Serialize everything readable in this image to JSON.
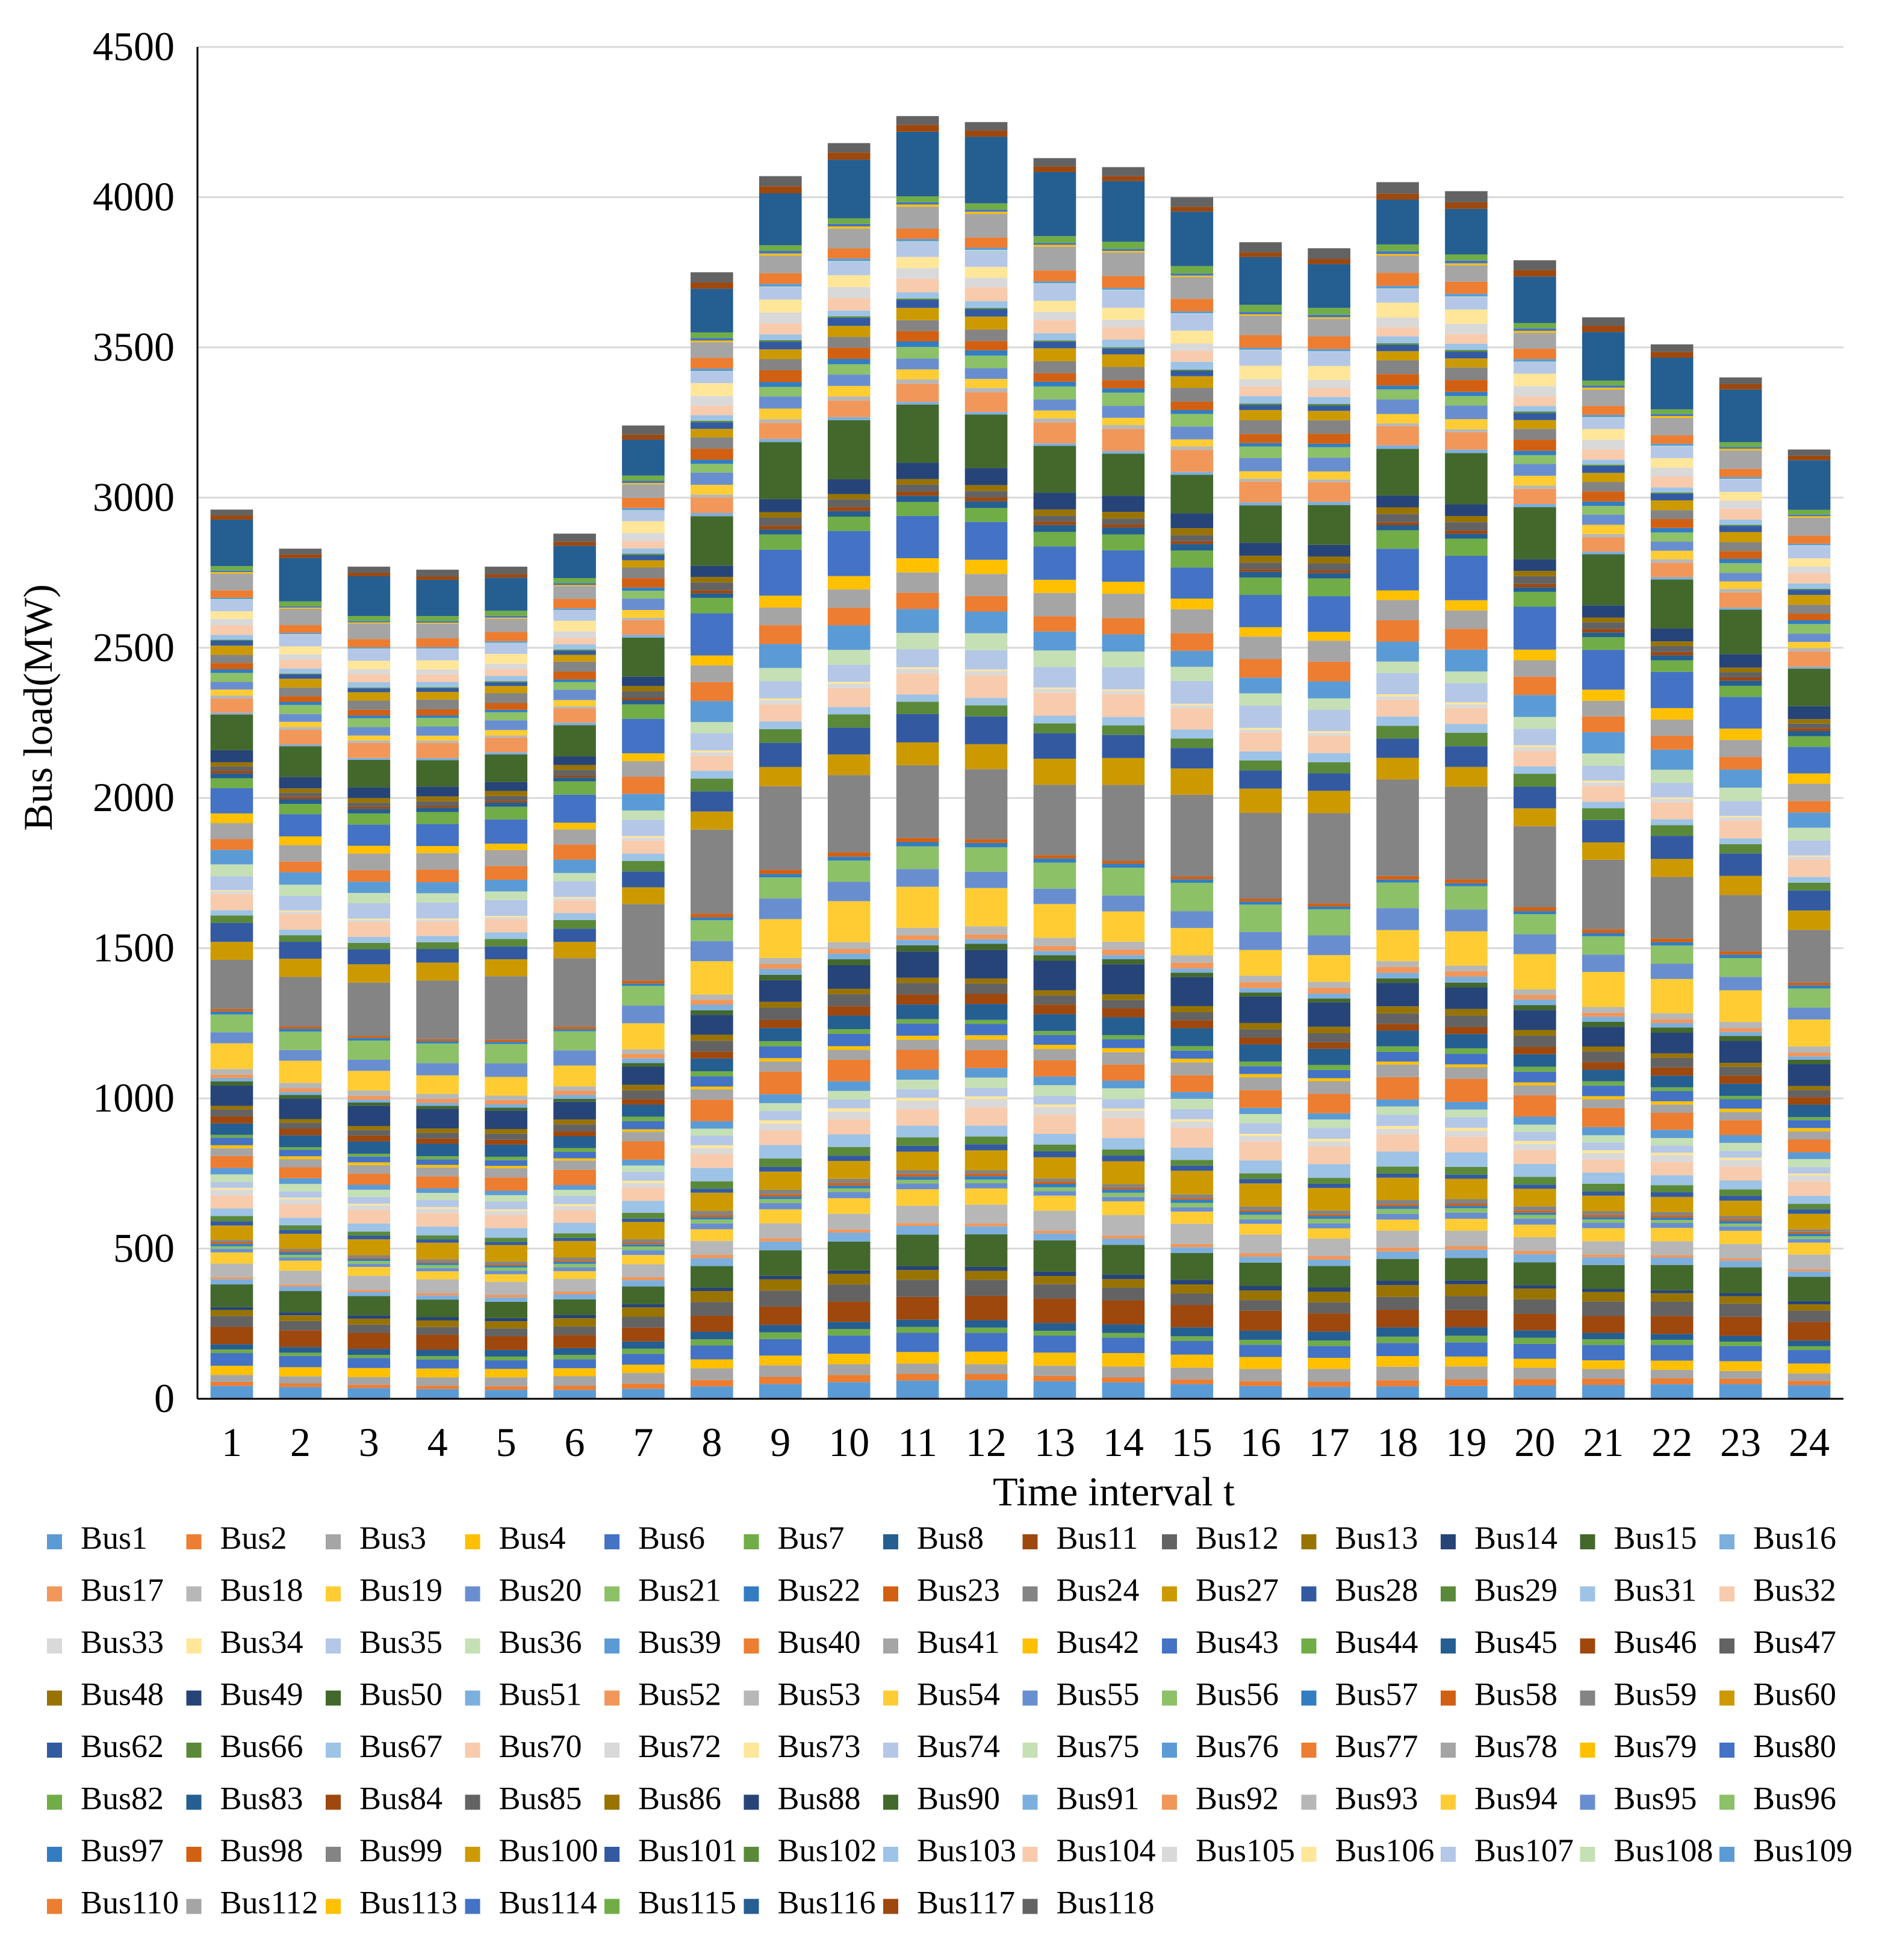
{
  "chart_data": {
    "type": "bar",
    "stacked": true,
    "title": "",
    "xlabel": "Time interval t",
    "ylabel": "Bus load(MW)",
    "ylim": [
      0,
      4500
    ],
    "yticks": [
      0,
      500,
      1000,
      1500,
      2000,
      2500,
      3000,
      3500,
      4000,
      4500
    ],
    "grid": true,
    "legend_position": "bottom",
    "categories": [
      "1",
      "2",
      "3",
      "4",
      "5",
      "6",
      "7",
      "8",
      "9",
      "10",
      "11",
      "12",
      "13",
      "14",
      "15",
      "16",
      "17",
      "18",
      "19",
      "20",
      "21",
      "22",
      "23",
      "24"
    ],
    "totals": [
      2960,
      2830,
      2770,
      2760,
      2770,
      2880,
      3240,
      3750,
      4070,
      4180,
      4270,
      4250,
      4130,
      4100,
      4000,
      3850,
      3830,
      4050,
      4020,
      3790,
      3600,
      3510,
      3400,
      3160
    ],
    "series_names": [
      "Bus1",
      "Bus2",
      "Bus3",
      "Bus4",
      "Bus6",
      "Bus7",
      "Bus8",
      "Bus11",
      "Bus12",
      "Bus13",
      "Bus14",
      "Bus15",
      "Bus16",
      "Bus17",
      "Bus18",
      "Bus19",
      "Bus20",
      "Bus21",
      "Bus22",
      "Bus23",
      "Bus24",
      "Bus27",
      "Bus28",
      "Bus29",
      "Bus31",
      "Bus32",
      "Bus33",
      "Bus34",
      "Bus35",
      "Bus36",
      "Bus39",
      "Bus40",
      "Bus41",
      "Bus42",
      "Bus43",
      "Bus44",
      "Bus45",
      "Bus46",
      "Bus47",
      "Bus48",
      "Bus49",
      "Bus50",
      "Bus51",
      "Bus52",
      "Bus53",
      "Bus54",
      "Bus55",
      "Bus56",
      "Bus57",
      "Bus58",
      "Bus59",
      "Bus60",
      "Bus62",
      "Bus66",
      "Bus67",
      "Bus70",
      "Bus72",
      "Bus73",
      "Bus74",
      "Bus75",
      "Bus76",
      "Bus77",
      "Bus78",
      "Bus79",
      "Bus80",
      "Bus82",
      "Bus83",
      "Bus84",
      "Bus85",
      "Bus86",
      "Bus88",
      "Bus90",
      "Bus91",
      "Bus92",
      "Bus93",
      "Bus94",
      "Bus95",
      "Bus96",
      "Bus97",
      "Bus98",
      "Bus99",
      "Bus100",
      "Bus101",
      "Bus102",
      "Bus103",
      "Bus104",
      "Bus105",
      "Bus106",
      "Bus107",
      "Bus108",
      "Bus109",
      "Bus110",
      "Bus112",
      "Bus113",
      "Bus114",
      "Bus115",
      "Bus116",
      "Bus117",
      "Bus118"
    ],
    "base_loads": [
      51,
      20,
      39,
      39,
      52,
      19,
      28,
      70,
      47,
      34,
      14,
      90,
      25,
      11,
      60,
      45,
      18,
      14,
      10,
      7,
      13,
      71,
      17,
      24,
      43,
      59,
      23,
      9,
      33,
      31,
      27,
      66,
      39,
      12,
      34,
      16,
      53,
      28,
      34,
      20,
      87,
      17,
      17,
      18,
      23,
      113,
      63,
      84,
      12,
      12,
      277,
      78,
      77,
      39,
      28,
      66,
      12,
      6,
      68,
      47,
      68,
      61,
      71,
      39,
      130,
      54,
      20,
      11,
      24,
      21,
      48,
      163,
      10,
      65,
      12,
      30,
      42,
      38,
      15,
      34,
      42,
      37,
      22,
      5,
      23,
      38,
      31,
      43,
      50,
      2,
      8,
      39,
      68,
      6,
      8,
      22,
      184,
      20,
      33
    ],
    "palette": [
      "#5b9bd5",
      "#ed7d31",
      "#a5a5a5",
      "#ffc000",
      "#4472c4",
      "#70ad47",
      "#255e91",
      "#9e480e",
      "#636363",
      "#997300",
      "#264478",
      "#43682b",
      "#7cafdd",
      "#f1975a",
      "#b7b7b7",
      "#ffcd33",
      "#698ed0",
      "#8cc168",
      "#327dc2",
      "#d26012",
      "#848484",
      "#cc9a00",
      "#335aa1",
      "#5a8a39",
      "#9dc3e6",
      "#f8cbad",
      "#d9d9d9",
      "#ffe699",
      "#b4c7e7",
      "#c5e0b4"
    ]
  }
}
